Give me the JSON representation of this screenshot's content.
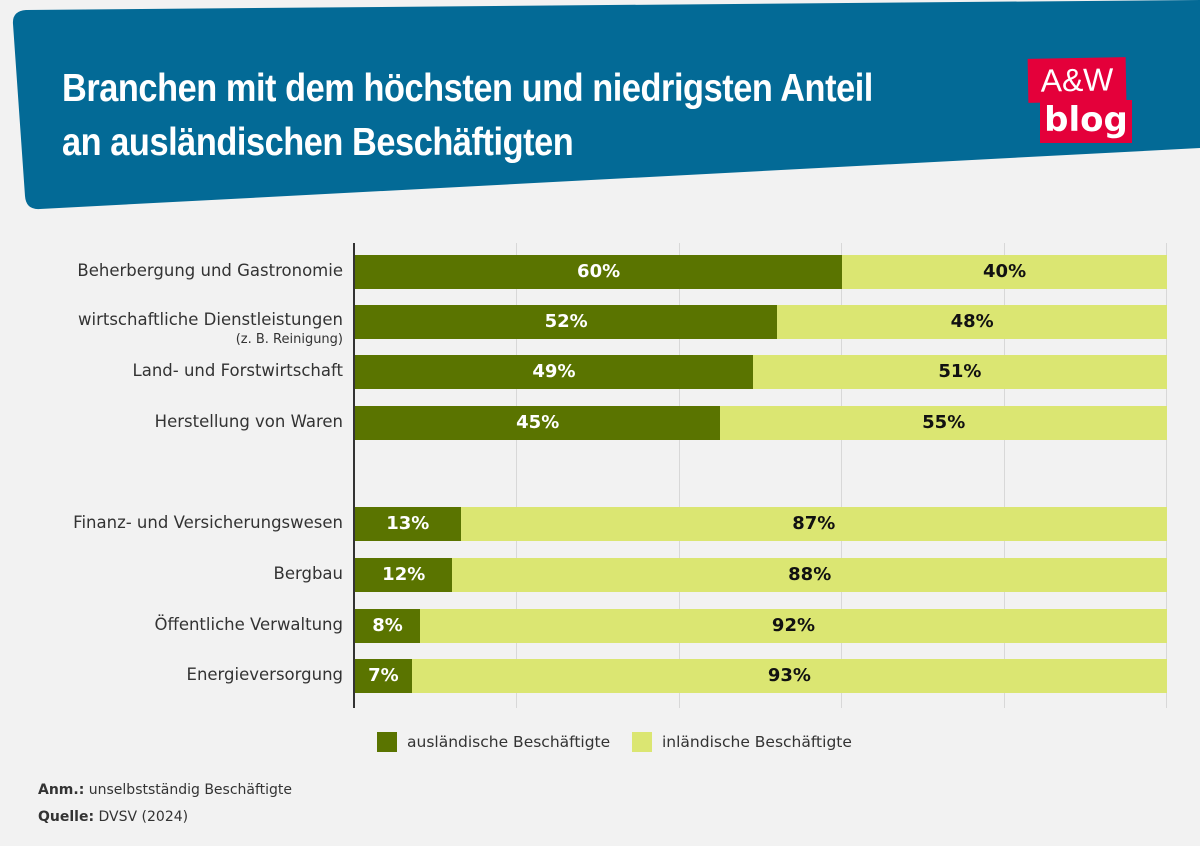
{
  "header": {
    "title": "Branchen mit dem höchsten und niedrigsten Anteil an ausländischen Beschäftigten",
    "logo_top": "A&W",
    "logo_bottom": "blog"
  },
  "colors": {
    "header": "#036a96",
    "foreign": "#5a7400",
    "domestic": "#dbe672",
    "logo": "#e4003a"
  },
  "chart_data": {
    "type": "bar",
    "stacked": true,
    "orientation": "horizontal",
    "title": "Branchen mit dem höchsten und niedrigsten Anteil an ausländischen Beschäftigten",
    "categories": [
      "Beherbergung und Gastronomie",
      "wirtschaftliche Dienstleistungen",
      "Land- und Forstwirtschaft",
      "Herstellung von Waren",
      "Finanz- und Versicherungswesen",
      "Bergbau",
      "Öffentliche Verwaltung",
      "Energieversorgung"
    ],
    "category_notes": [
      "",
      "(z. B. Reinigung)",
      "",
      "",
      "",
      "",
      "",
      ""
    ],
    "series": [
      {
        "name": "ausländische Beschäftigte",
        "values": [
          60,
          52,
          49,
          45,
          13,
          12,
          8,
          7
        ]
      },
      {
        "name": "inländische Beschäftigte",
        "values": [
          40,
          48,
          51,
          55,
          87,
          88,
          92,
          93
        ]
      }
    ],
    "xlim": [
      0,
      100
    ],
    "grid": true,
    "legend": "bottom"
  },
  "footer": {
    "note_label": "Anm.:",
    "note_text": " unselbstständig Beschäftigte",
    "source_label": "Quelle:",
    "source_text": " DVSV (2024)"
  }
}
